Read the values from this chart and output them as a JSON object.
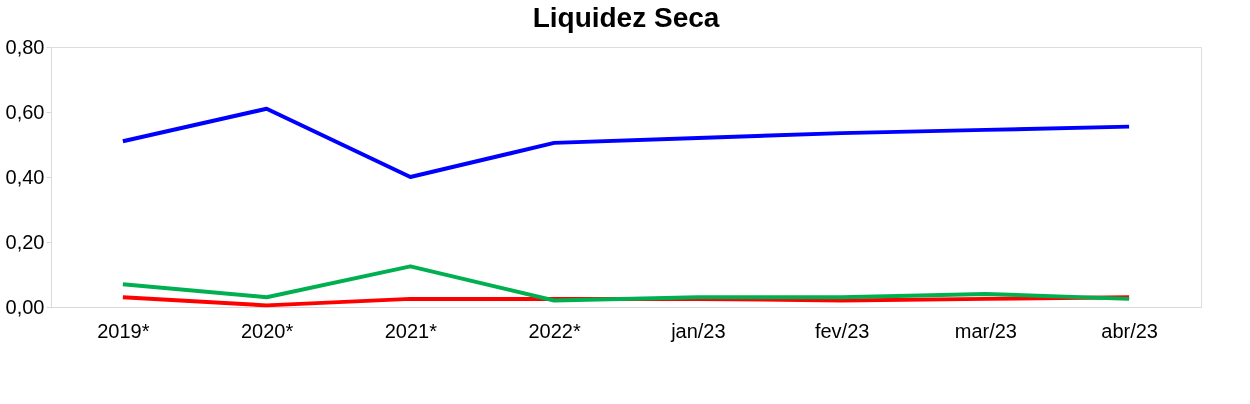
{
  "chart_data": {
    "type": "line",
    "title": "Liquidez Seca",
    "categories": [
      "2019*",
      "2020*",
      "2021*",
      "2022*",
      "jan/23",
      "fev/23",
      "mar/23",
      "abr/23"
    ],
    "series": [
      {
        "color": "#0000ff",
        "values": [
          0.51,
          0.61,
          0.4,
          0.505,
          0.52,
          0.535,
          0.545,
          0.555
        ]
      },
      {
        "color": "#ff0000",
        "values": [
          0.03,
          0.005,
          0.025,
          0.025,
          0.025,
          0.02,
          0.025,
          0.03
        ]
      },
      {
        "color": "#00b050",
        "values": [
          0.07,
          0.03,
          0.125,
          0.02,
          0.03,
          0.03,
          0.04,
          0.025
        ]
      }
    ],
    "ylim": [
      0,
      0.8
    ],
    "yticks": [
      {
        "value": 0,
        "label": "0,00"
      },
      {
        "value": 0.2,
        "label": "0,20"
      },
      {
        "value": 0.4,
        "label": "0,40"
      },
      {
        "value": 0.6,
        "label": "0,60"
      },
      {
        "value": 0.8,
        "label": "0,80"
      }
    ],
    "grid": false,
    "legend": false,
    "marker": "none",
    "line_style": "solid"
  }
}
